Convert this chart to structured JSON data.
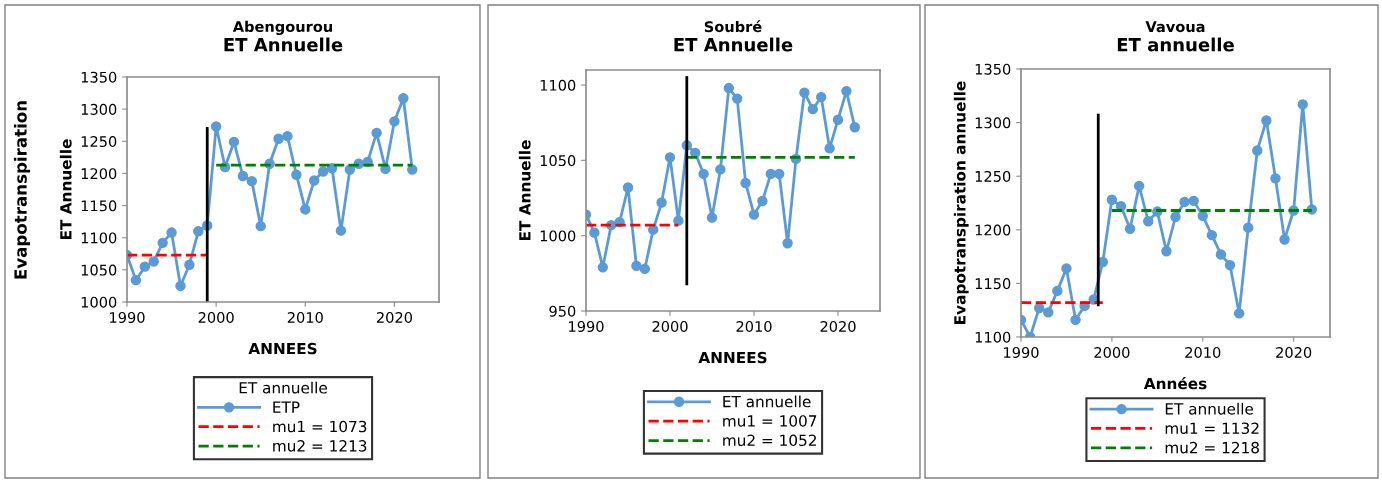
{
  "chart_data": [
    {
      "type": "line",
      "subtitle": "Abengourou",
      "title": "ET Annuelle",
      "xlabel": "ANNEES",
      "ylabel": "ET Annuelle",
      "annotations": [
        "Evapotranspiration"
      ],
      "legend_title": "ET annuelle",
      "legend": "bottom",
      "marker": "circle",
      "grid": false,
      "xlim": [
        1990,
        2025
      ],
      "xticks": [
        1990,
        2000,
        2010,
        2020
      ],
      "ylim": [
        1000,
        1350
      ],
      "yticks": [
        1000,
        1050,
        1100,
        1150,
        1200,
        1250,
        1300,
        1350
      ],
      "x": [
        1990,
        1991,
        1992,
        1993,
        1994,
        1995,
        1996,
        1997,
        1998,
        1999,
        2000,
        2001,
        2002,
        2003,
        2004,
        2005,
        2006,
        2007,
        2008,
        2009,
        2010,
        2011,
        2012,
        2013,
        2014,
        2015,
        2016,
        2017,
        2018,
        2019,
        2020,
        2021,
        2022
      ],
      "series": [
        {
          "name": "ETP",
          "color": "#5b9bd5",
          "values": [
            1073,
            1034,
            1055,
            1063,
            1092,
            1108,
            1025,
            1058,
            1110,
            1119,
            1273,
            1210,
            1249,
            1196,
            1188,
            1118,
            1215,
            1254,
            1258,
            1198,
            1144,
            1189,
            1203,
            1208,
            1111,
            1206,
            1215,
            1218,
            1263,
            1207,
            1281,
            1317,
            1206
          ]
        },
        {
          "name": "mu1 = 1073",
          "color": "#ff0000",
          "line_style": "dashed",
          "marker": "none",
          "x": [
            1990,
            1999
          ],
          "values": [
            1073,
            1073
          ]
        },
        {
          "name": "mu2 = 1213",
          "color": "#008000",
          "line_style": "dashed",
          "marker": "none",
          "x": [
            2000,
            2022
          ],
          "values": [
            1213,
            1213
          ]
        },
        {
          "color": "#000000",
          "marker": "none",
          "x": [
            1999,
            1999
          ],
          "values": [
            1000,
            1270
          ]
        }
      ]
    },
    {
      "type": "line",
      "subtitle": "Soubré",
      "title": "ET Annuelle",
      "xlabel": "ANNEES",
      "ylabel": "ET Annuelle",
      "legend": "bottom",
      "marker": "circle",
      "grid": false,
      "xlim": [
        1990,
        2025
      ],
      "xticks": [
        1990,
        2000,
        2010,
        2020
      ],
      "ylim": [
        950,
        1110
      ],
      "yticks": [
        950,
        1000,
        1050,
        1100
      ],
      "x": [
        1990,
        1991,
        1992,
        1993,
        1994,
        1995,
        1996,
        1997,
        1998,
        1999,
        2000,
        2001,
        2002,
        2003,
        2004,
        2005,
        2006,
        2007,
        2008,
        2009,
        2010,
        2011,
        2012,
        2013,
        2014,
        2015,
        2016,
        2017,
        2018,
        2019,
        2020,
        2021,
        2022
      ],
      "series": [
        {
          "name": "ET annuelle",
          "color": "#5b9bd5",
          "values": [
            1014,
            1002,
            979,
            1007,
            1009,
            1032,
            980,
            978,
            1004,
            1022,
            1052,
            1010,
            1060,
            1055,
            1041,
            1012,
            1044,
            1098,
            1091,
            1035,
            1014,
            1023,
            1041,
            1041,
            995,
            1051,
            1095,
            1084,
            1092,
            1058,
            1077,
            1096,
            1072
          ]
        },
        {
          "name": "mu1 = 1007",
          "color": "#ff0000",
          "line_style": "dashed",
          "marker": "none",
          "x": [
            1990,
            2001
          ],
          "values": [
            1007,
            1007
          ]
        },
        {
          "name": "mu2 = 1052",
          "color": "#008000",
          "line_style": "dashed",
          "marker": "none",
          "x": [
            2002,
            2022
          ],
          "values": [
            1052,
            1052
          ]
        },
        {
          "color": "#000000",
          "marker": "none",
          "x": [
            2002,
            2002
          ],
          "values": [
            968,
            1105
          ]
        }
      ]
    },
    {
      "type": "line",
      "subtitle": "Vavoua",
      "title": "ET annuelle",
      "xlabel": "Années",
      "ylabel": "Evapotranspiration annuelle",
      "legend": "bottom",
      "marker": "circle",
      "grid": false,
      "xlim": [
        1990,
        2024
      ],
      "xticks": [
        1990,
        2000,
        2010,
        2020
      ],
      "ylim": [
        1100,
        1350
      ],
      "yticks": [
        1100,
        1150,
        1200,
        1250,
        1300,
        1350
      ],
      "x": [
        1990,
        1991,
        1992,
        1993,
        1994,
        1995,
        1996,
        1997,
        1998,
        1999,
        2000,
        2001,
        2002,
        2003,
        2004,
        2005,
        2006,
        2007,
        2008,
        2009,
        2010,
        2011,
        2012,
        2013,
        2014,
        2015,
        2016,
        2017,
        2018,
        2019,
        2020,
        2021,
        2022
      ],
      "series": [
        {
          "name": "ET annuelle",
          "color": "#5b9bd5",
          "values": [
            1116,
            1100,
            1127,
            1123,
            1143,
            1164,
            1116,
            1129,
            1135,
            1170,
            1228,
            1222,
            1201,
            1241,
            1208,
            1217,
            1180,
            1212,
            1226,
            1227,
            1213,
            1195,
            1177,
            1167,
            1122,
            1202,
            1274,
            1302,
            1248,
            1191,
            1218,
            1317,
            1219
          ]
        },
        {
          "name": "mu1 = 1132",
          "color": "#ff0000",
          "line_style": "dashed",
          "marker": "none",
          "x": [
            1990,
            1999
          ],
          "values": [
            1132,
            1132
          ]
        },
        {
          "name": "mu2 = 1218",
          "color": "#008000",
          "line_style": "dashed",
          "marker": "none",
          "x": [
            2000,
            2022
          ],
          "values": [
            1218,
            1218
          ]
        },
        {
          "color": "#000000",
          "marker": "none",
          "x": [
            1998.5,
            1998.5
          ],
          "values": [
            1130,
            1307
          ]
        }
      ]
    }
  ]
}
